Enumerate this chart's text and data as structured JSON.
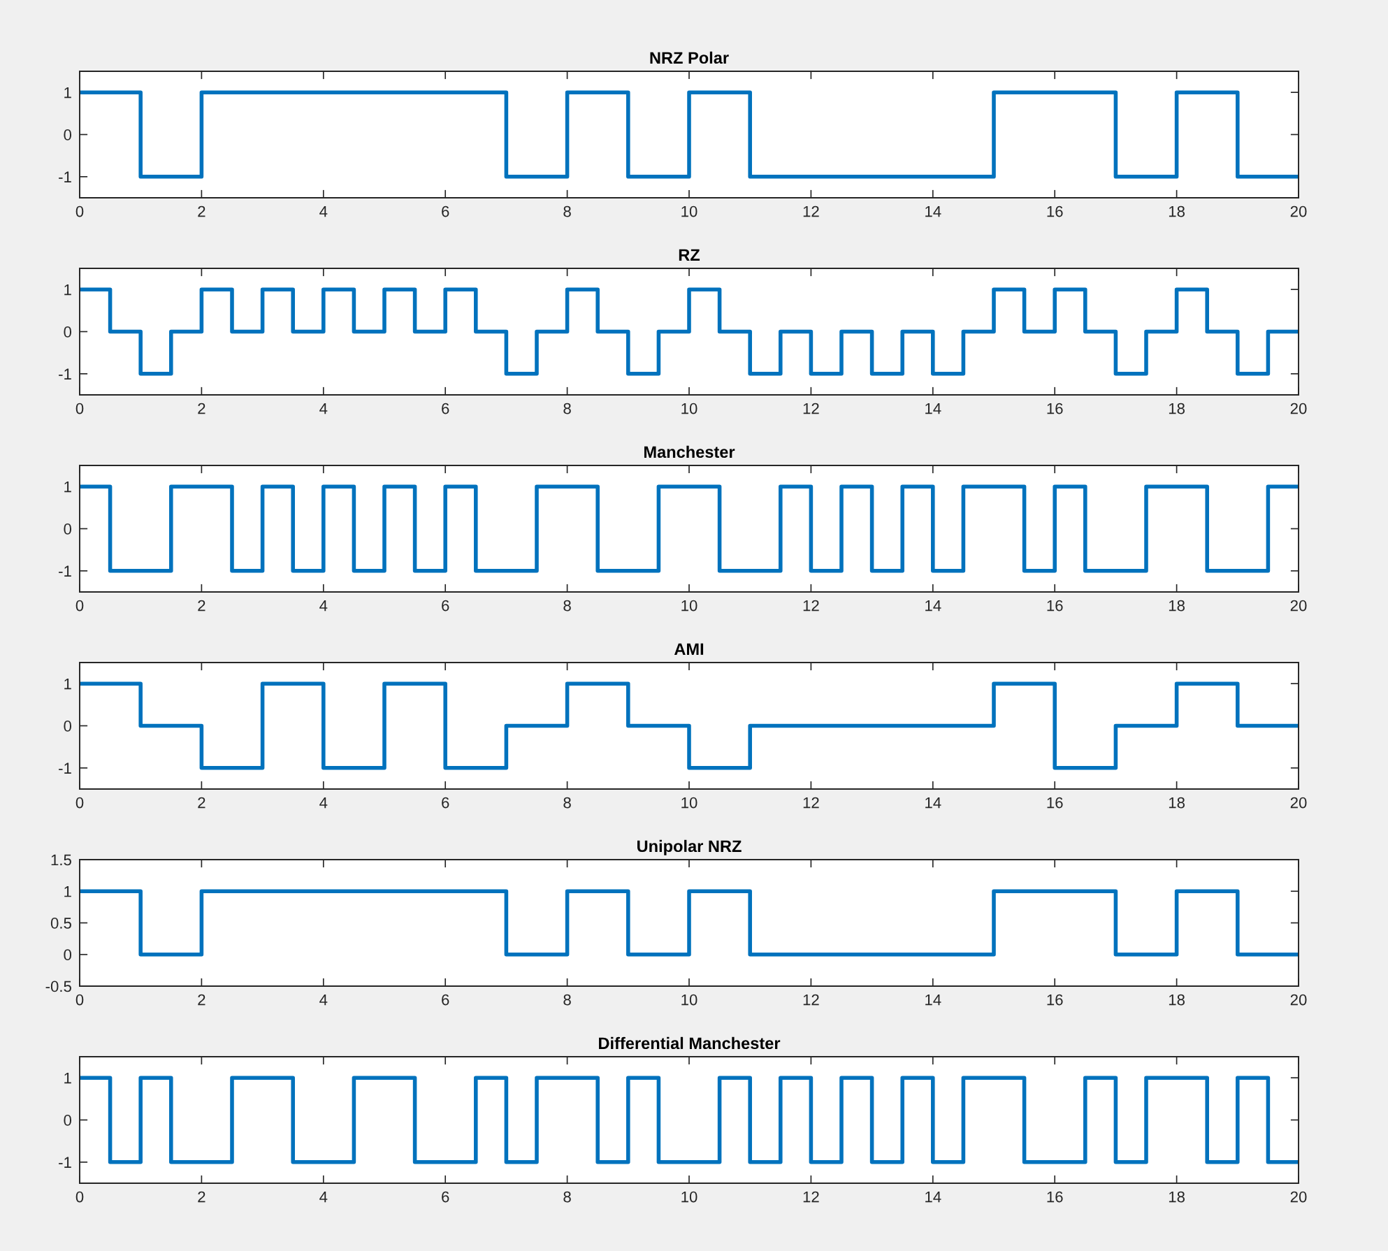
{
  "chart_data": [
    {
      "type": "step",
      "title": "NRZ Polar",
      "x": [
        0,
        1,
        2,
        7,
        8,
        9,
        10,
        11,
        15,
        17,
        18,
        19,
        20
      ],
      "series": [
        {
          "color": "#0072bd",
          "values": [
            1,
            -1,
            1,
            -1,
            1,
            -1,
            1,
            -1,
            1,
            -1,
            1,
            -1,
            -1
          ]
        }
      ],
      "xlim": [
        0,
        20
      ],
      "xticks": [
        0,
        2,
        4,
        6,
        8,
        10,
        12,
        14,
        16,
        18,
        20
      ],
      "ylim": [
        -1.5,
        1.5
      ],
      "yticks": [
        -1,
        0,
        1
      ]
    },
    {
      "type": "step",
      "title": "RZ",
      "x": [
        0,
        0.5,
        1,
        1.5,
        2,
        2.5,
        3,
        3.5,
        4,
        4.5,
        5,
        5.5,
        6,
        6.5,
        7,
        7.5,
        8,
        8.5,
        9,
        9.5,
        10,
        10.5,
        11,
        11.5,
        12,
        12.5,
        13,
        13.5,
        14,
        14.5,
        15,
        15.5,
        16,
        16.5,
        17,
        17.5,
        18,
        18.5,
        19,
        19.5,
        20
      ],
      "series": [
        {
          "color": "#0072bd",
          "values": [
            1,
            0,
            -1,
            0,
            1,
            0,
            1,
            0,
            1,
            0,
            1,
            0,
            1,
            0,
            -1,
            0,
            1,
            0,
            -1,
            0,
            1,
            0,
            -1,
            0,
            -1,
            0,
            -1,
            0,
            -1,
            0,
            1,
            0,
            1,
            0,
            -1,
            0,
            1,
            0,
            -1,
            0,
            0
          ]
        }
      ],
      "xlim": [
        0,
        20
      ],
      "xticks": [
        0,
        2,
        4,
        6,
        8,
        10,
        12,
        14,
        16,
        18,
        20
      ],
      "ylim": [
        -1.5,
        1.5
      ],
      "yticks": [
        -1,
        0,
        1
      ]
    },
    {
      "type": "step",
      "title": "Manchester",
      "x": [
        0,
        0.5,
        1.5,
        2.5,
        3,
        3.5,
        4,
        4.5,
        5,
        5.5,
        6,
        6.5,
        7.5,
        8.5,
        9.5,
        10.5,
        11.5,
        12,
        12.5,
        13,
        13.5,
        14,
        14.5,
        15.5,
        16,
        16.5,
        17.5,
        18.5,
        19.5,
        20
      ],
      "series": [
        {
          "color": "#0072bd",
          "values": [
            1,
            -1,
            1,
            -1,
            1,
            -1,
            1,
            -1,
            1,
            -1,
            1,
            -1,
            1,
            -1,
            1,
            -1,
            1,
            -1,
            1,
            -1,
            1,
            -1,
            1,
            -1,
            1,
            -1,
            1,
            -1,
            1,
            1
          ]
        }
      ],
      "xlim": [
        0,
        20
      ],
      "xticks": [
        0,
        2,
        4,
        6,
        8,
        10,
        12,
        14,
        16,
        18,
        20
      ],
      "ylim": [
        -1.5,
        1.5
      ],
      "yticks": [
        -1,
        0,
        1
      ]
    },
    {
      "type": "step",
      "title": "AMI",
      "x": [
        0,
        1,
        2,
        3,
        4,
        5,
        6,
        7,
        8,
        9,
        10,
        11,
        15,
        16,
        17,
        18,
        19,
        20
      ],
      "series": [
        {
          "color": "#0072bd",
          "values": [
            1,
            0,
            -1,
            1,
            -1,
            1,
            -1,
            0,
            1,
            0,
            -1,
            0,
            1,
            -1,
            0,
            1,
            0,
            0
          ]
        }
      ],
      "xlim": [
        0,
        20
      ],
      "xticks": [
        0,
        2,
        4,
        6,
        8,
        10,
        12,
        14,
        16,
        18,
        20
      ],
      "ylim": [
        -1.5,
        1.5
      ],
      "yticks": [
        -1,
        0,
        1
      ]
    },
    {
      "type": "step",
      "title": "Unipolar NRZ",
      "x": [
        0,
        1,
        2,
        7,
        8,
        9,
        10,
        11,
        15,
        17,
        18,
        19,
        20
      ],
      "series": [
        {
          "color": "#0072bd",
          "values": [
            1,
            0,
            1,
            0,
            1,
            0,
            1,
            0,
            1,
            0,
            1,
            0,
            0
          ]
        }
      ],
      "xlim": [
        0,
        20
      ],
      "xticks": [
        0,
        2,
        4,
        6,
        8,
        10,
        12,
        14,
        16,
        18,
        20
      ],
      "ylim": [
        -0.5,
        1.5
      ],
      "yticks": [
        -0.5,
        0,
        0.5,
        1,
        1.5
      ]
    },
    {
      "type": "step",
      "title": "Differential Manchester",
      "x": [
        0,
        0.5,
        1,
        1.5,
        2.5,
        3.5,
        4.5,
        5.5,
        6.5,
        7,
        7.5,
        8.5,
        9,
        9.5,
        10.5,
        11,
        11.5,
        12,
        12.5,
        13,
        13.5,
        14,
        14.5,
        15.5,
        16.5,
        17,
        17.5,
        18.5,
        19,
        19.5,
        20
      ],
      "series": [
        {
          "color": "#0072bd",
          "values": [
            1,
            -1,
            1,
            -1,
            1,
            -1,
            1,
            -1,
            1,
            -1,
            1,
            -1,
            1,
            -1,
            1,
            -1,
            1,
            -1,
            1,
            -1,
            1,
            -1,
            1,
            -1,
            1,
            -1,
            1,
            -1,
            1,
            -1,
            -1
          ]
        }
      ],
      "xlim": [
        0,
        20
      ],
      "xticks": [
        0,
        2,
        4,
        6,
        8,
        10,
        12,
        14,
        16,
        18,
        20
      ],
      "ylim": [
        -1.5,
        1.5
      ],
      "yticks": [
        -1,
        0,
        1
      ]
    }
  ]
}
